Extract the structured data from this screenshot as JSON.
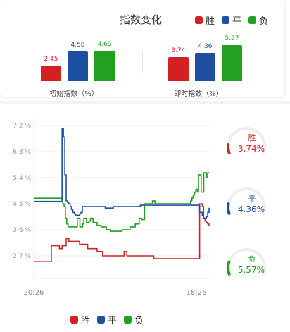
{
  "header": {
    "title": "指数变化",
    "legend": [
      {
        "label": "胜",
        "color": "#d32023"
      },
      {
        "label": "平",
        "color": "#1e4fa0"
      },
      {
        "label": "负",
        "color": "#22a022"
      }
    ]
  },
  "chart_data": [
    {
      "type": "bar",
      "categories": [
        "初始指数（%）",
        "即时指数（%）"
      ],
      "series": [
        {
          "name": "胜",
          "color": "#d32023",
          "values": [
            2.45,
            3.74
          ]
        },
        {
          "name": "平",
          "color": "#1e4fa0",
          "values": [
            4.58,
            4.36
          ]
        },
        {
          "name": "负",
          "color": "#22a022",
          "values": [
            4.69,
            5.57
          ]
        }
      ]
    },
    {
      "type": "line",
      "x_labels": [
        "20:26",
        "18:26"
      ],
      "y_ticks": [
        "7.2 %",
        "6.3 %",
        "5.4 %",
        "4.5 %",
        "3.6 %",
        "2.7 %"
      ],
      "ylim": [
        2.25,
        7.4
      ],
      "series": [
        {
          "name": "胜",
          "color": "#c62828",
          "values": [
            2.5,
            2.5,
            2.5,
            2.5,
            2.5,
            2.5,
            2.5,
            2.5,
            2.5,
            2.5,
            2.5,
            2.5,
            2.5,
            3.05,
            3.05,
            3.05,
            3.05,
            3.05,
            3.05,
            2.95,
            2.95,
            3.05,
            3.05,
            3.05,
            3.3,
            3.3,
            3.2,
            3.2,
            3.2,
            3.2,
            3.2,
            3.2,
            3.2,
            3.2,
            3.1,
            3.1,
            3.1,
            3.1,
            3.1,
            3.1,
            2.95,
            2.95,
            2.95,
            2.95,
            2.95,
            2.95,
            2.95,
            2.85,
            2.85,
            2.85,
            2.85,
            2.7,
            2.7,
            2.7,
            2.7,
            2.7,
            2.7,
            2.7,
            2.7,
            2.7,
            2.7,
            2.7,
            2.7,
            2.7,
            2.7,
            2.7,
            2.7,
            2.85,
            2.85,
            2.7,
            2.7,
            2.7,
            2.7,
            2.7,
            2.7,
            2.7,
            2.7,
            2.7,
            2.7,
            2.7,
            2.7,
            2.7,
            2.7,
            2.7,
            2.7,
            2.7,
            2.7,
            2.7,
            2.7,
            2.6,
            2.6,
            2.6,
            2.6,
            2.6,
            2.6,
            2.6,
            2.6,
            2.6,
            2.6,
            2.6,
            2.6,
            2.6,
            2.6,
            2.6,
            2.6,
            2.6,
            2.6,
            2.6,
            2.6,
            2.6,
            2.6,
            2.6,
            2.6,
            2.6,
            2.6,
            2.6,
            2.6,
            2.6,
            2.6,
            2.6,
            2.6,
            2.6,
            2.6,
            4.5,
            4.5,
            4.4,
            4.0,
            3.9,
            3.85,
            3.8,
            3.74
          ]
        },
        {
          "name": "平",
          "color": "#1e4fa0",
          "values": [
            4.58,
            4.58,
            4.58,
            4.58,
            4.58,
            4.58,
            4.58,
            4.58,
            4.58,
            4.58,
            4.58,
            4.58,
            4.58,
            4.58,
            4.58,
            4.58,
            4.58,
            4.58,
            4.58,
            4.58,
            4.58,
            7.1,
            6.8,
            5.5,
            4.6,
            4.55,
            4.5,
            4.4,
            4.3,
            4.2,
            4.15,
            4.1,
            4.1,
            4.1,
            4.15,
            4.2,
            4.4,
            4.4,
            4.4,
            4.4,
            4.4,
            4.4,
            4.4,
            4.4,
            4.4,
            4.4,
            4.4,
            4.4,
            4.4,
            4.4,
            4.4,
            4.4,
            4.4,
            4.35,
            4.35,
            4.35,
            4.35,
            4.35,
            4.35,
            4.4,
            4.4,
            4.4,
            4.4,
            4.4,
            4.4,
            4.4,
            4.4,
            4.4,
            4.4,
            4.4,
            4.4,
            4.4,
            4.4,
            4.4,
            4.4,
            4.4,
            4.4,
            4.4,
            4.4,
            4.45,
            4.45,
            4.45,
            4.45,
            4.45,
            4.45,
            4.45,
            4.45,
            4.45,
            4.45,
            4.45,
            4.45,
            4.45,
            4.45,
            4.45,
            4.45,
            4.45,
            4.45,
            4.45,
            4.45,
            4.45,
            4.45,
            4.45,
            4.45,
            4.45,
            4.45,
            4.45,
            4.45,
            4.45,
            4.45,
            4.45,
            4.45,
            4.45,
            4.45,
            4.45,
            4.45,
            4.45,
            4.45,
            4.45,
            4.45,
            4.45,
            4.45,
            4.45,
            4.45,
            4.2,
            4.2,
            4.1,
            4.0,
            4.0,
            4.05,
            4.2,
            4.36
          ]
        },
        {
          "name": "负",
          "color": "#22a022",
          "values": [
            4.69,
            4.69,
            4.69,
            4.69,
            4.69,
            4.69,
            4.69,
            4.69,
            4.69,
            4.69,
            4.69,
            4.69,
            4.69,
            4.69,
            4.69,
            4.69,
            4.69,
            4.69,
            4.69,
            4.69,
            4.69,
            4.6,
            4.5,
            4.4,
            4.0,
            3.8,
            3.7,
            3.7,
            3.7,
            3.7,
            3.7,
            3.7,
            3.7,
            4.0,
            4.0,
            3.7,
            3.7,
            3.8,
            4.0,
            4.0,
            3.85,
            3.85,
            3.9,
            4.0,
            4.0,
            3.85,
            3.85,
            3.85,
            3.75,
            3.75,
            3.75,
            3.7,
            3.7,
            3.7,
            3.7,
            3.6,
            3.6,
            3.6,
            3.55,
            3.55,
            3.55,
            3.55,
            3.55,
            3.55,
            3.55,
            3.55,
            3.55,
            3.6,
            3.6,
            3.6,
            3.6,
            3.6,
            3.6,
            3.7,
            3.7,
            3.7,
            3.7,
            3.8,
            3.8,
            3.8,
            4.0,
            4.0,
            3.95,
            3.95,
            4.5,
            4.5,
            4.5,
            4.5,
            4.5,
            4.5,
            4.6,
            4.6,
            4.5,
            4.5,
            4.5,
            4.5,
            4.5,
            4.5,
            4.5,
            4.5,
            4.5,
            4.5,
            4.5,
            4.5,
            4.5,
            4.5,
            4.5,
            4.5,
            4.5,
            4.5,
            4.5,
            4.5,
            4.5,
            4.5,
            4.5,
            4.5,
            4.5,
            4.5,
            4.5,
            4.6,
            4.7,
            4.8,
            4.9,
            5.0,
            4.9,
            5.5,
            5.5,
            4.9,
            4.9,
            5.57,
            5.57,
            5.4,
            5.57,
            5.57
          ]
        }
      ]
    }
  ],
  "gauges": [
    {
      "label": "胜",
      "value": "3.74%",
      "fraction": 0.0374,
      "color": "#c62828"
    },
    {
      "label": "平",
      "value": "4.36%",
      "fraction": 0.0436,
      "color": "#1e4fa0"
    },
    {
      "label": "负",
      "value": "5.57%",
      "fraction": 0.0557,
      "color": "#22a022"
    }
  ],
  "footer_legend": [
    {
      "label": "胜",
      "color": "#d32023"
    },
    {
      "label": "平",
      "color": "#1e4fa0"
    },
    {
      "label": "负",
      "color": "#22a022"
    }
  ]
}
